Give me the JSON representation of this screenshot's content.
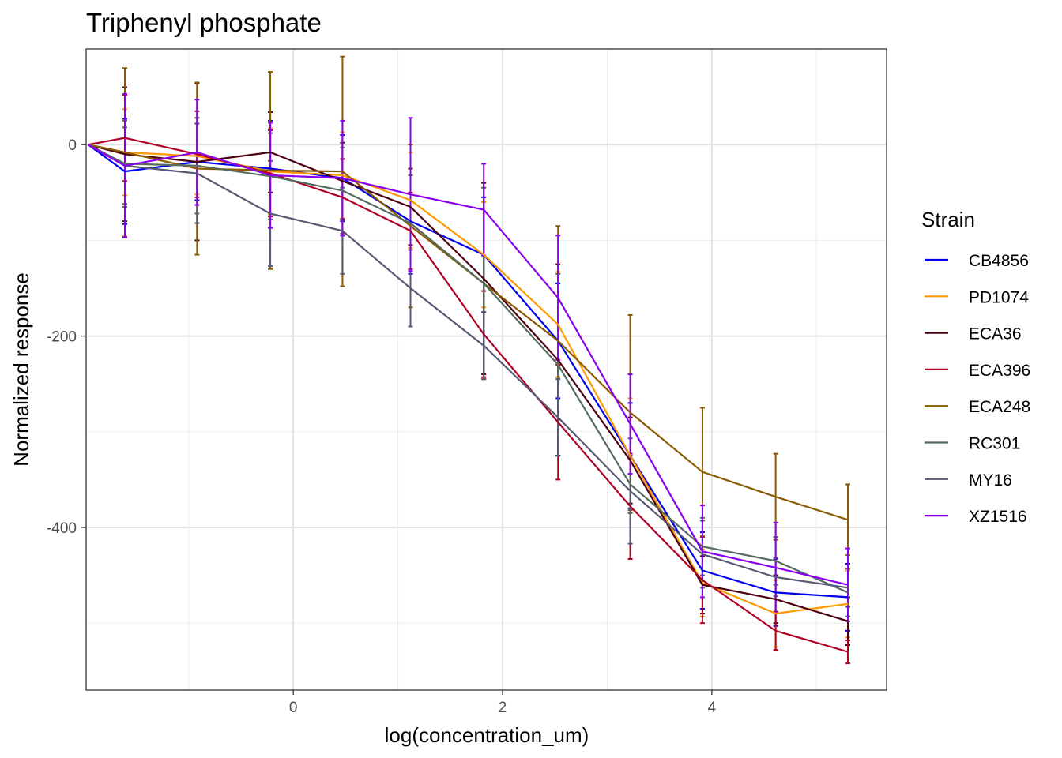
{
  "chart_data": {
    "type": "line",
    "title": "Triphenyl phosphate",
    "xlabel": "log(concentration_um)",
    "ylabel": "Normalized response",
    "xlim": [
      -1.98,
      5.67
    ],
    "ylim": [
      -570,
      100
    ],
    "xticks": [
      0,
      2,
      4
    ],
    "xtick_labels": [
      "0",
      "2",
      "4"
    ],
    "yticks": [
      0,
      -200,
      -400
    ],
    "ytick_labels": [
      "0",
      "-200",
      "-400"
    ],
    "x_minor": [
      -1,
      1,
      3,
      5
    ],
    "y_minor": [
      100,
      -100,
      -300,
      -500
    ],
    "grid": true,
    "legend_title": "Strain",
    "legend_position": "right",
    "x": [
      -1.96,
      -1.61,
      -0.92,
      -0.22,
      0.47,
      1.12,
      1.82,
      2.53,
      3.22,
      3.91,
      4.61,
      5.3
    ],
    "series": [
      {
        "name": "CB4856",
        "color": "#0000EE",
        "values": [
          0,
          -28,
          -18,
          -25,
          -35,
          -80,
          -115,
          -205,
          -325,
          -445,
          -468,
          -473
        ],
        "errors": [
          0,
          55,
          40,
          50,
          45,
          55,
          60,
          60,
          55,
          40,
          35,
          35
        ]
      },
      {
        "name": "PD1074",
        "color": "#FF9900",
        "values": [
          0,
          -8,
          -12,
          -28,
          -32,
          -58,
          -115,
          -188,
          -325,
          -458,
          -490,
          -480
        ],
        "errors": [
          0,
          45,
          40,
          45,
          45,
          50,
          55,
          55,
          60,
          35,
          35,
          35
        ]
      },
      {
        "name": "ECA36",
        "color": "#4D0010",
        "values": [
          0,
          -10,
          -18,
          -8,
          -38,
          -65,
          -140,
          -225,
          -330,
          -460,
          -475,
          -498
        ],
        "errors": [
          0,
          70,
          82,
          42,
          40,
          40,
          100,
          100,
          45,
          30,
          25,
          25
        ]
      },
      {
        "name": "ECA396",
        "color": "#B10026",
        "values": [
          0,
          7,
          -10,
          -30,
          -55,
          -90,
          -198,
          -290,
          -378,
          -455,
          -508,
          -530
        ],
        "errors": [
          0,
          45,
          45,
          45,
          40,
          40,
          45,
          60,
          55,
          45,
          20,
          12
        ]
      },
      {
        "name": "ECA248",
        "color": "#8B5A00",
        "values": [
          0,
          -8,
          -25,
          -27,
          -28,
          -85,
          -145,
          -205,
          -280,
          -342,
          -368,
          -392
        ],
        "errors": [
          0,
          88,
          90,
          103,
          120,
          85,
          100,
          120,
          102,
          67,
          45,
          37
        ]
      },
      {
        "name": "RC301",
        "color": "#556B5E",
        "values": [
          0,
          -20,
          -22,
          -33,
          -48,
          -82,
          -145,
          -230,
          -355,
          -420,
          -435,
          -468
        ],
        "errors": [
          0,
          45,
          50,
          45,
          45,
          50,
          100,
          95,
          30,
          30,
          25,
          25
        ]
      },
      {
        "name": "MY16",
        "color": "#575A73",
        "values": [
          0,
          -22,
          -30,
          -72,
          -90,
          -150,
          -210,
          -285,
          -362,
          -428,
          -452,
          -463
        ],
        "errors": [
          0,
          40,
          52,
          55,
          45,
          40,
          35,
          40,
          55,
          35,
          20,
          20
        ]
      },
      {
        "name": "XZ1516",
        "color": "#8B00EE",
        "values": [
          0,
          -22,
          -8,
          -32,
          -35,
          -52,
          -68,
          -160,
          -292,
          -425,
          -442,
          -460
        ],
        "errors": [
          0,
          75,
          55,
          55,
          60,
          80,
          48,
          65,
          52,
          48,
          47,
          38
        ]
      }
    ]
  }
}
